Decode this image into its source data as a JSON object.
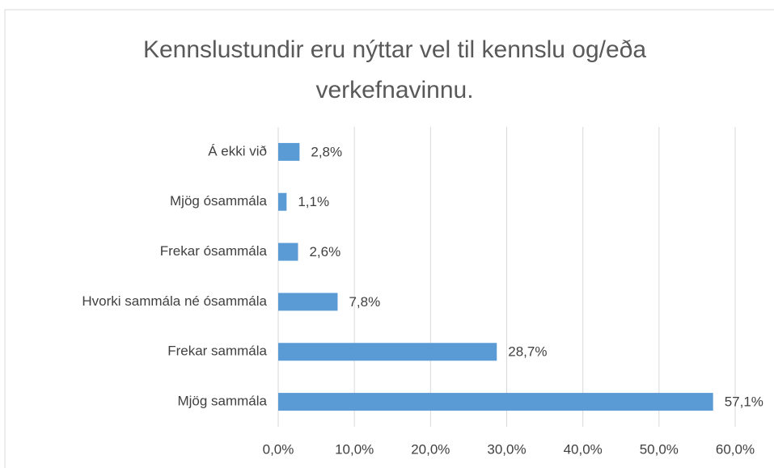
{
  "chart_data": {
    "type": "bar",
    "orientation": "horizontal",
    "title": [
      "Kennslustundir eru nýttar vel til kennslu og/eða",
      "verkefnavinnu."
    ],
    "categories": [
      "Á ekki við",
      "Mjög ósammála",
      "Frekar ósammála",
      "Hvorki sammála né ósammála",
      "Frekar sammála",
      "Mjög sammála"
    ],
    "values": [
      2.8,
      1.1,
      2.6,
      7.8,
      28.7,
      57.1
    ],
    "value_labels": [
      "2,8%",
      "1,1%",
      "2,6%",
      "7,8%",
      "28,7%",
      "57,1%"
    ],
    "color": "#5b9bd5",
    "xlim": [
      0,
      60
    ],
    "xticks": [
      {
        "value": 0,
        "label": "0,0%"
      },
      {
        "value": 10,
        "label": "10,0%"
      },
      {
        "value": 20,
        "label": "20,0%"
      },
      {
        "value": 30,
        "label": "30,0%"
      },
      {
        "value": 40,
        "label": "40,0%"
      },
      {
        "value": 50,
        "label": "50,0%"
      },
      {
        "value": 60,
        "label": "60,0%"
      }
    ],
    "grid": true
  }
}
